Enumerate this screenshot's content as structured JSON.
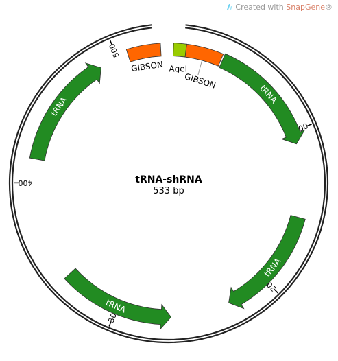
{
  "watermark": {
    "prefix": "Created with ",
    "brand": "SnapGene",
    "suffix": "®"
  },
  "plasmid": {
    "name": "tRNA-shRNA",
    "length_label": "533 bp",
    "length": 533
  },
  "ticks": [
    {
      "pos": 100,
      "label": "100"
    },
    {
      "pos": 200,
      "label": "200"
    },
    {
      "pos": 300,
      "label": "300"
    },
    {
      "pos": 400,
      "label": "400"
    },
    {
      "pos": 500,
      "label": "500"
    }
  ],
  "features": [
    {
      "label": "AgeI",
      "type": "site",
      "start": 3,
      "end": 11,
      "color": "#99cc00",
      "direction": "none"
    },
    {
      "label": "GIBSON",
      "type": "primer",
      "start": 11,
      "end": 34,
      "color": "#ff6600",
      "direction": "none"
    },
    {
      "label": "tRNA",
      "type": "gene",
      "start": 35,
      "end": 108,
      "color": "#228b22",
      "direction": "cw"
    },
    {
      "label": "tRNA",
      "type": "gene",
      "start": 155,
      "end": 227,
      "color": "#228b22",
      "direction": "cw"
    },
    {
      "label": "tRNA",
      "type": "gene",
      "start": 265,
      "end": 337,
      "color": "#228b22",
      "direction": "ccw"
    },
    {
      "label": "tRNA",
      "type": "gene",
      "start": 415,
      "end": 488,
      "color": "#228b22",
      "direction": "cw"
    },
    {
      "label": "GIBSON",
      "type": "primer",
      "start": 507,
      "end": 528,
      "color": "#ff6600",
      "direction": "none"
    }
  ]
}
